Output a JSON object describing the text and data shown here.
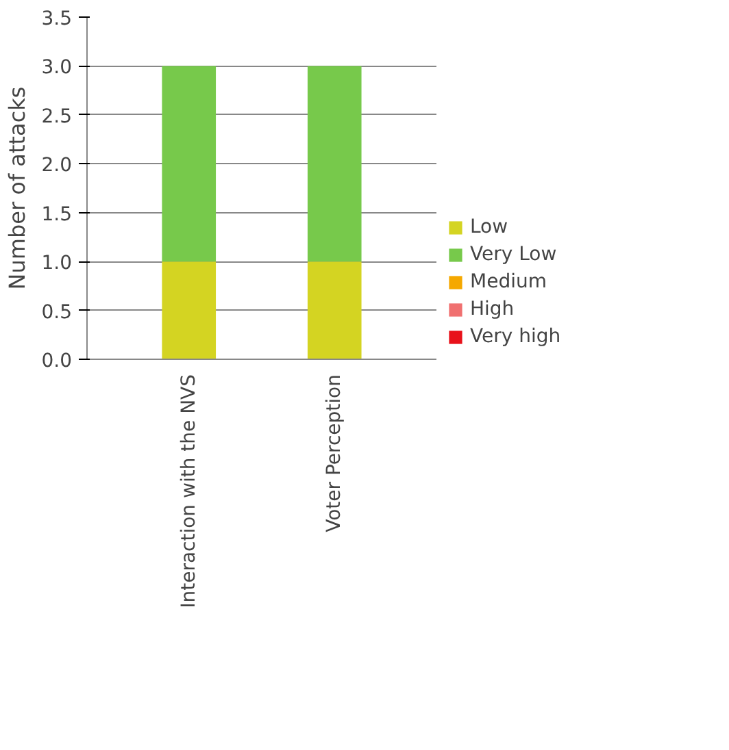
{
  "chart_data": {
    "type": "bar",
    "stacked": true,
    "ylabel": "Number of attacks",
    "categories": [
      "Interaction with the NVS",
      "Voter Perception"
    ],
    "series": [
      {
        "name": "Low",
        "color": "#d4d422",
        "values": [
          1,
          1
        ]
      },
      {
        "name": "Very Low",
        "color": "#77c94b",
        "values": [
          2,
          2
        ]
      },
      {
        "name": "Medium",
        "color": "#f5a800",
        "values": [
          0,
          0
        ]
      },
      {
        "name": "High",
        "color": "#f07070",
        "values": [
          0,
          0
        ]
      },
      {
        "name": "Very high",
        "color": "#e8121a",
        "values": [
          0,
          0
        ]
      }
    ],
    "ylim": [
      0,
      3.5
    ],
    "yticks": [
      {
        "value": 0,
        "label": "0.0"
      },
      {
        "value": 0.5,
        "label": "0.5"
      },
      {
        "value": 1,
        "label": "1.0"
      },
      {
        "value": 1.5,
        "label": "1.5"
      },
      {
        "value": 2,
        "label": "2.0"
      },
      {
        "value": 2.5,
        "label": "2.5"
      },
      {
        "value": 3,
        "label": "3.0"
      },
      {
        "value": 3.5,
        "label": "3.5"
      }
    ],
    "grid": "y",
    "legend": "right"
  }
}
